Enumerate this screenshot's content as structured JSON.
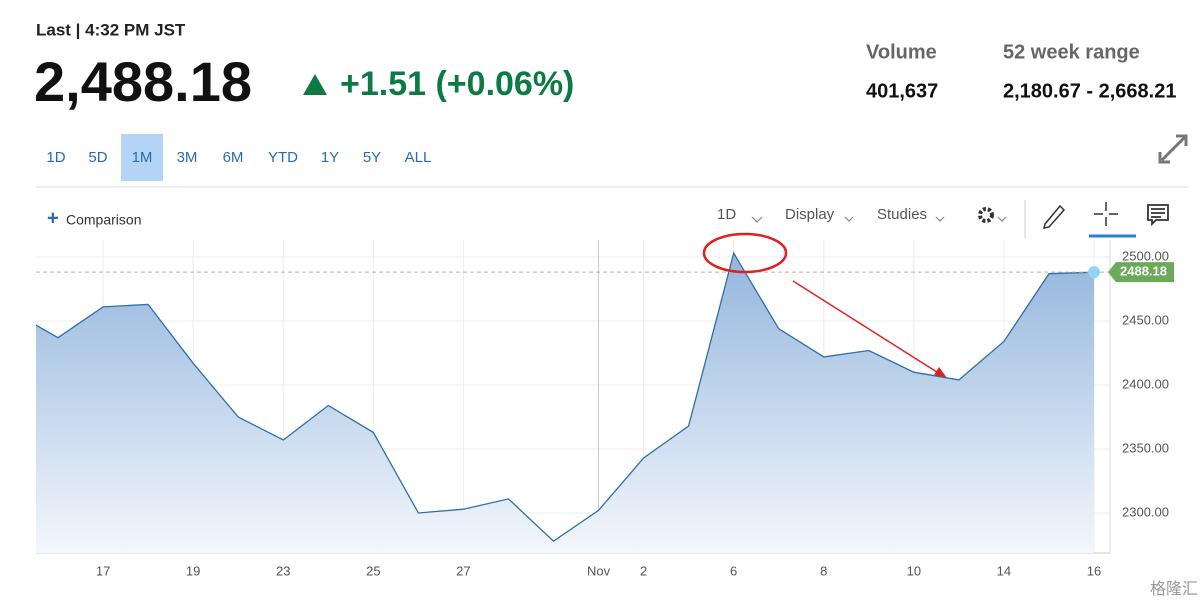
{
  "header": {
    "last": "Last | 4:32 PM JST",
    "price": "2,488.18",
    "change": "+1.51 (+0.06%)",
    "volume_label": "Volume",
    "volume": "401,637",
    "range_label": "52 week range",
    "range": "2,180.67 - 2,668.21"
  },
  "ranges": {
    "buttons": [
      "1D",
      "5D",
      "1M",
      "3M",
      "6M",
      "YTD",
      "1Y",
      "5Y",
      "ALL"
    ],
    "active": 2
  },
  "toolbar": {
    "comparison": "Comparison",
    "interval": "1D",
    "display": "Display",
    "studies": "Studies"
  },
  "watermark": "格隆汇",
  "chart_data": {
    "type": "area",
    "categories": [
      null,
      null,
      "17",
      null,
      "19",
      null,
      "23",
      null,
      "25",
      null,
      "27",
      null,
      null,
      "Nov",
      "2",
      null,
      "6",
      null,
      "8",
      null,
      "10",
      null,
      "14",
      null,
      "16"
    ],
    "values": [
      2457,
      2437,
      2461,
      2463,
      2417,
      2375,
      2357,
      2384,
      2363,
      2300,
      2303,
      2311,
      2278,
      2302,
      2343,
      2368,
      2503,
      2444,
      2422,
      2427,
      2410,
      2404,
      2434,
      2487,
      2488.18
    ],
    "color": "#2d6fa8",
    "ylim": [
      2268.75,
      2513.3
    ],
    "yticks": [
      {
        "value": 2300,
        "label": "2300.00"
      },
      {
        "value": 2350,
        "label": "2350.00"
      },
      {
        "value": 2400,
        "label": "2400.00"
      },
      {
        "value": 2450,
        "label": "2450.00"
      },
      {
        "value": 2500,
        "label": "2500.00"
      }
    ],
    "grid": true
  }
}
